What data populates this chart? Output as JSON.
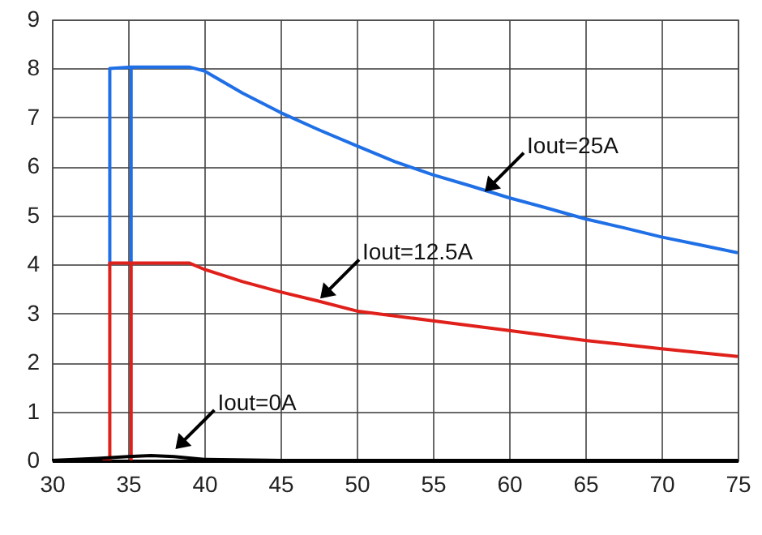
{
  "chart_data": {
    "type": "line",
    "xlim": [
      30,
      75
    ],
    "ylim": [
      0,
      9
    ],
    "xticks": [
      30,
      35,
      40,
      45,
      50,
      55,
      60,
      65,
      70,
      75
    ],
    "yticks": [
      0,
      1,
      2,
      3,
      4,
      5,
      6,
      7,
      8,
      9
    ],
    "grid": true,
    "marker": "none",
    "line_style": "solid",
    "series": [
      {
        "color": "#1f6fe6",
        "x": [
          33.8,
          33.8,
          35.2,
          35.2,
          35.2,
          39,
          40,
          42.5,
          45,
          47.5,
          50,
          52.5,
          55,
          57.5,
          60,
          62.5,
          65,
          67.5,
          70,
          72.5,
          75
        ],
        "values": [
          4,
          8,
          8.03,
          4,
          8.03,
          8.03,
          7.95,
          7.5,
          7.1,
          6.75,
          6.42,
          6.1,
          5.83,
          5.6,
          5.36,
          5.15,
          4.93,
          4.75,
          4.56,
          4.4,
          4.24
        ]
      },
      {
        "color": "#e0201a",
        "x": [
          33.3,
          33.8,
          33.8,
          35.2,
          35.2,
          35.2,
          39,
          40,
          42.5,
          45,
          47.5,
          50,
          55,
          60,
          65,
          70,
          75
        ],
        "values": [
          0,
          0,
          4.03,
          4.03,
          0,
          4.03,
          4.03,
          3.9,
          3.65,
          3.44,
          3.25,
          3.05,
          2.85,
          2.65,
          2.45,
          2.28,
          2.12
        ]
      },
      {
        "color": "#000000",
        "x": [
          30,
          33,
          35,
          36.5,
          38,
          40,
          45,
          75
        ],
        "values": [
          0,
          0.04,
          0.08,
          0.1,
          0.08,
          0.02,
          0,
          0
        ]
      }
    ],
    "annotations": [
      {
        "text": "Iout=25A",
        "x": 58.3,
        "y": 5.45
      },
      {
        "text": "Iout=12.5A",
        "x": 47.5,
        "y": 3.27
      },
      {
        "text": "Iout=0A",
        "x": 38,
        "y": 0.2
      }
    ]
  }
}
